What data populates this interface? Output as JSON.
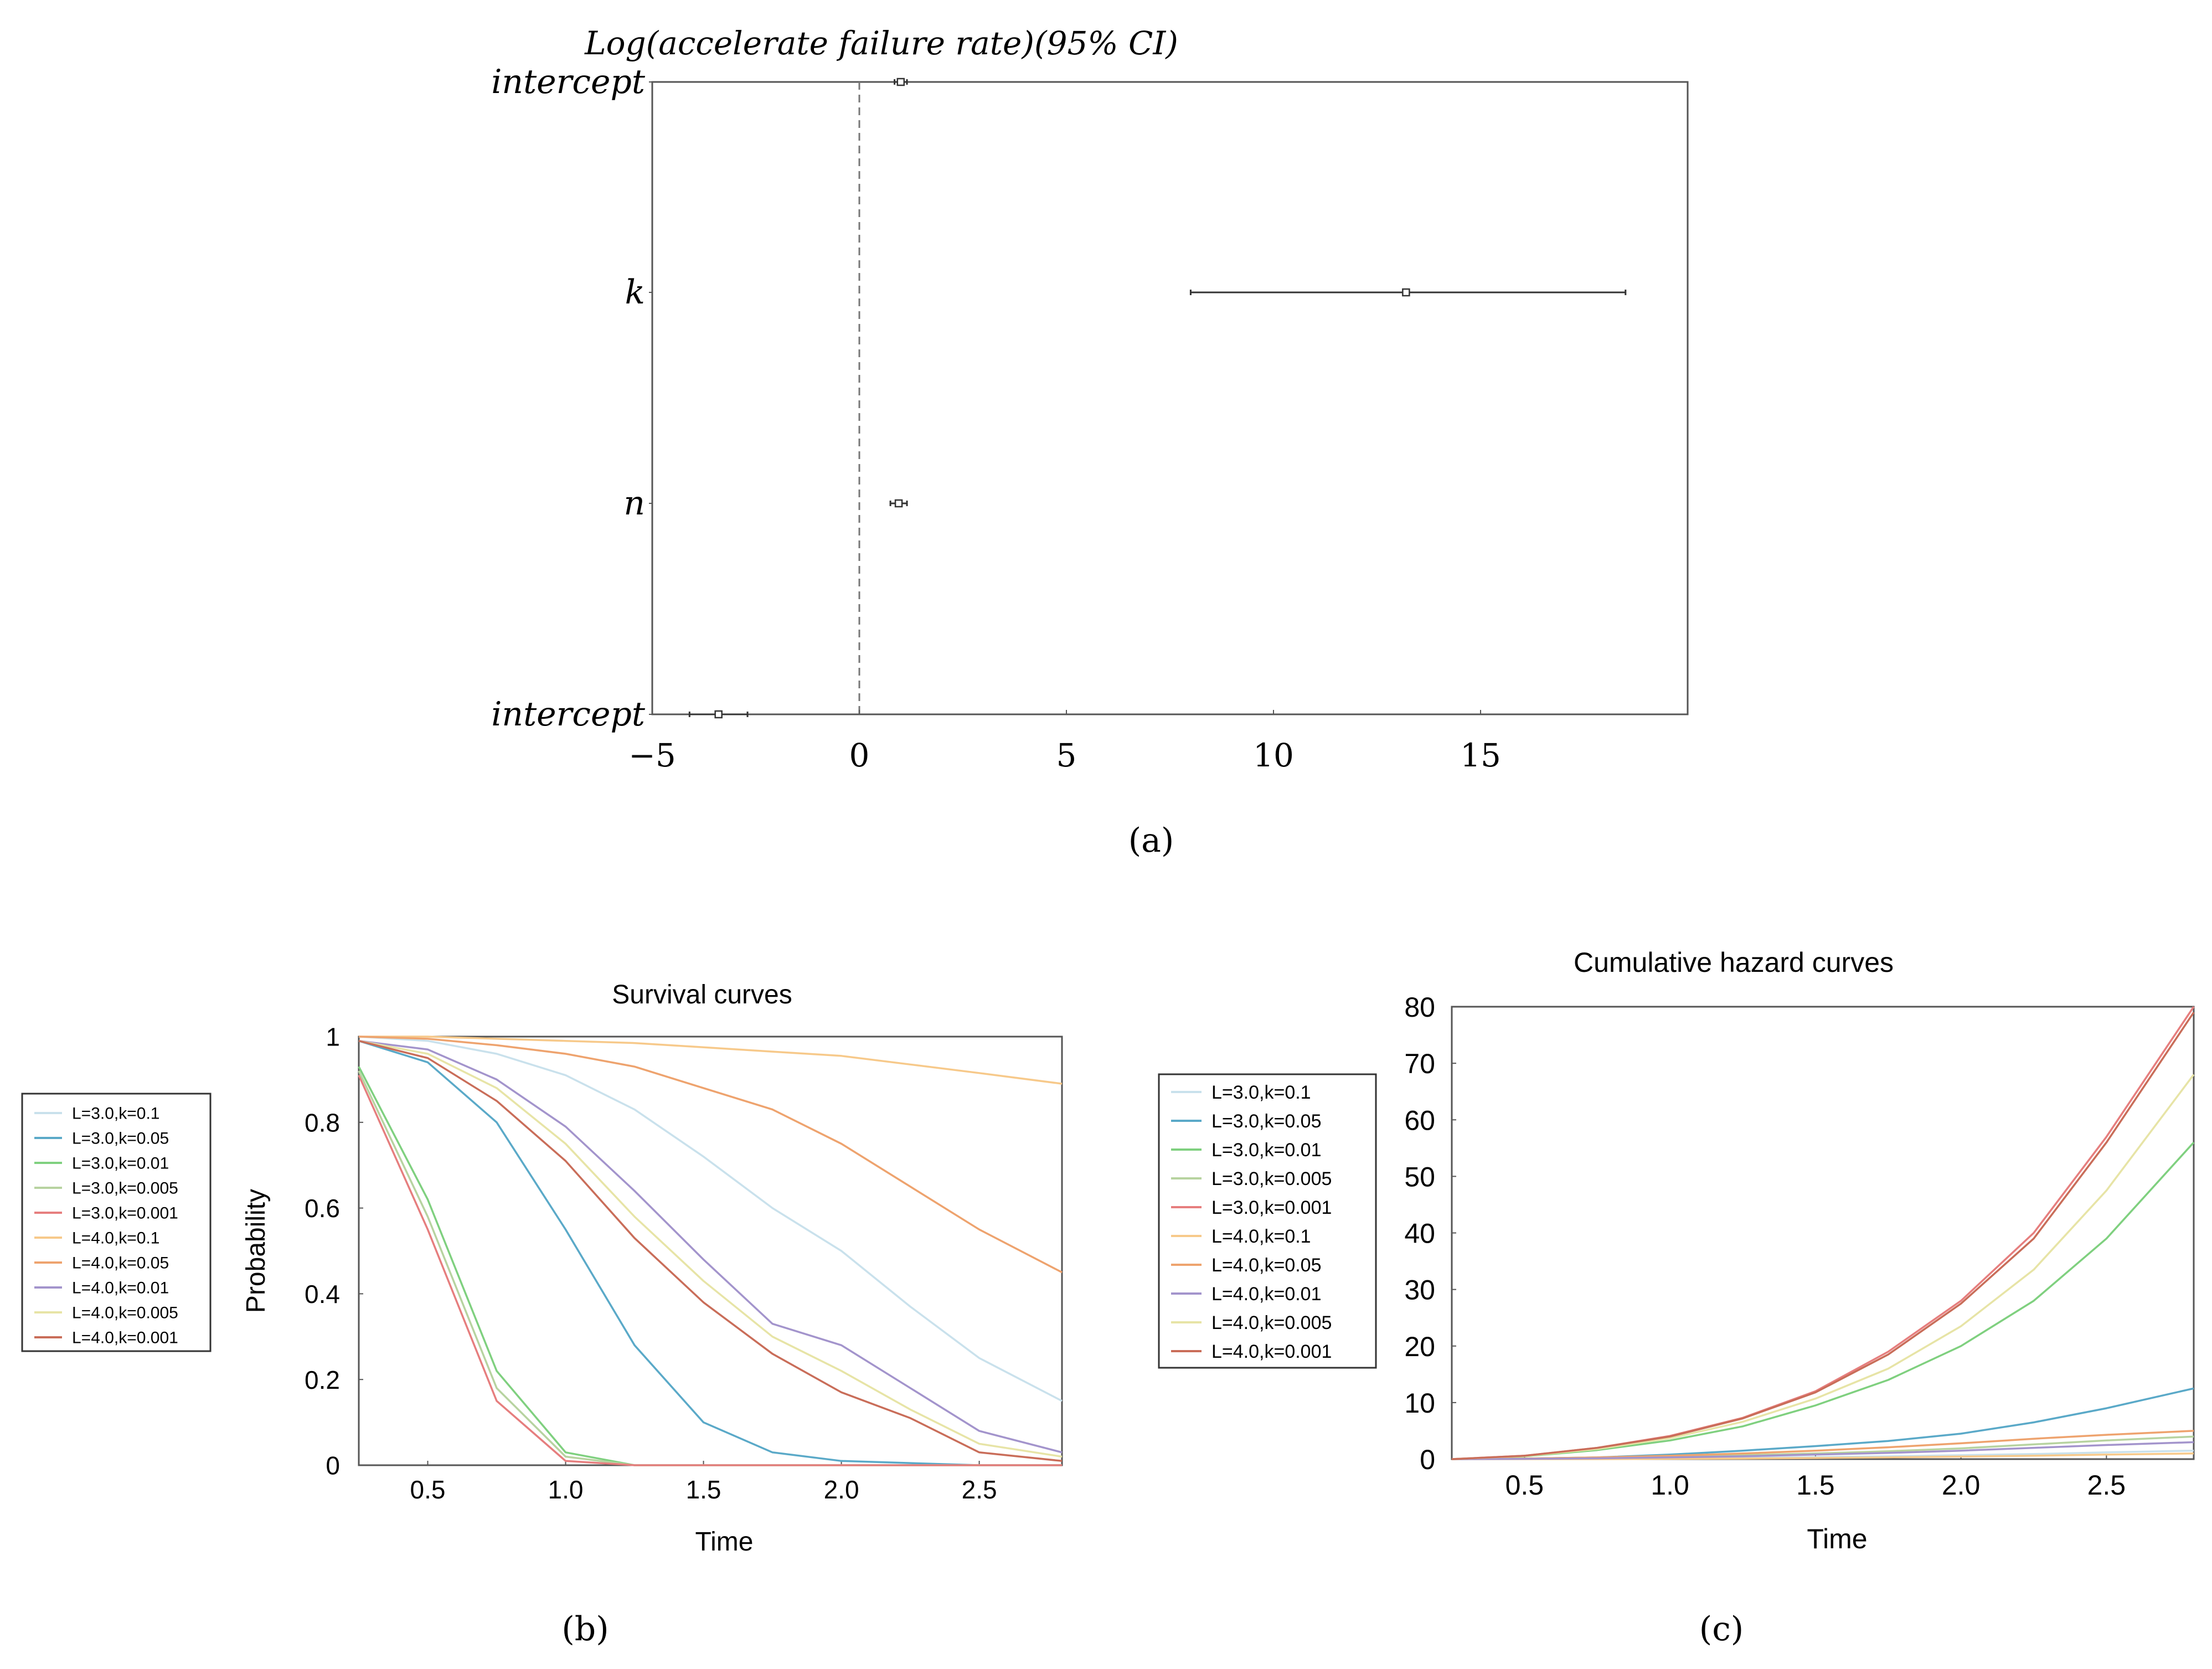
{
  "panel_labels": {
    "a": "(a)",
    "b": "(b)",
    "c": "(c)"
  },
  "colors": {
    "L=3.0,k=0.1": "#c9e1ec",
    "L=3.0,k=0.05": "#5aa9c8",
    "L=3.0,k=0.01": "#7fd07f",
    "L=3.0,k=0.005": "#b7d3a0",
    "L=3.0,k=0.001": "#e67e7e",
    "L=4.0,k=0.1": "#f7c98a",
    "L=4.0,k=0.05": "#eea36e",
    "L=4.0,k=0.01": "#a394cc",
    "L=4.0,k=0.005": "#e7e4a6",
    "L=4.0,k=0.001": "#c96d59"
  },
  "chart_data": [
    {
      "id": "a",
      "type": "scatter",
      "subtype": "forest",
      "title": "Log(accelerate failure rate)(95% CI)",
      "xlim": [
        -5,
        20
      ],
      "xticks": [
        "−5",
        "0",
        "5",
        "10",
        "15"
      ],
      "xtick_values": [
        -5,
        0,
        5,
        10,
        15
      ],
      "reference_line": 0,
      "rows": [
        {
          "label": "intercept",
          "estimate": 1.0,
          "ci": [
            0.85,
            1.15
          ]
        },
        {
          "label": "k",
          "estimate": 13.2,
          "ci": [
            8.0,
            18.5
          ]
        },
        {
          "label": "n",
          "estimate": 0.95,
          "ci": [
            0.75,
            1.15
          ]
        },
        {
          "label": "intercept",
          "estimate": -3.4,
          "ci": [
            -4.1,
            -2.7
          ]
        }
      ]
    },
    {
      "id": "b",
      "type": "line",
      "title": "Survival curves",
      "xlabel": "Time",
      "ylabel": "Probability",
      "xlim": [
        0.25,
        2.8
      ],
      "ylim": [
        0,
        1
      ],
      "xticks": [
        "0.5",
        "1.0",
        "1.5",
        "2.0",
        "2.5"
      ],
      "xtick_values": [
        0.5,
        1.0,
        1.5,
        2.0,
        2.5
      ],
      "yticks": [
        "0",
        "0.2",
        "0.4",
        "0.6",
        "0.8",
        "1"
      ],
      "ytick_values": [
        0,
        0.2,
        0.4,
        0.6,
        0.8,
        1
      ],
      "x": [
        0.25,
        0.5,
        0.75,
        1.0,
        1.25,
        1.5,
        1.75,
        2.0,
        2.25,
        2.5,
        2.8
      ],
      "series": [
        {
          "name": "L=3.0,k=0.1",
          "values": [
            1.0,
            0.99,
            0.96,
            0.91,
            0.83,
            0.72,
            0.6,
            0.5,
            0.37,
            0.25,
            0.15
          ]
        },
        {
          "name": "L=3.0,k=0.05",
          "values": [
            0.99,
            0.94,
            0.8,
            0.55,
            0.28,
            0.1,
            0.03,
            0.01,
            0.005,
            0.0,
            0.0
          ]
        },
        {
          "name": "L=3.0,k=0.01",
          "values": [
            0.93,
            0.62,
            0.22,
            0.03,
            0.0,
            0.0,
            0.0,
            0.0,
            0.0,
            0.0,
            0.0
          ]
        },
        {
          "name": "L=3.0,k=0.005",
          "values": [
            0.92,
            0.58,
            0.18,
            0.02,
            0.0,
            0.0,
            0.0,
            0.0,
            0.0,
            0.0,
            0.0
          ]
        },
        {
          "name": "L=3.0,k=0.001",
          "values": [
            0.91,
            0.55,
            0.15,
            0.01,
            0.0,
            0.0,
            0.0,
            0.0,
            0.0,
            0.0,
            0.0
          ]
        },
        {
          "name": "L=4.0,k=0.1",
          "values": [
            1.0,
            1.0,
            0.995,
            0.99,
            0.985,
            0.975,
            0.965,
            0.955,
            0.935,
            0.915,
            0.89
          ]
        },
        {
          "name": "L=4.0,k=0.05",
          "values": [
            1.0,
            0.995,
            0.98,
            0.96,
            0.93,
            0.88,
            0.83,
            0.75,
            0.65,
            0.55,
            0.45
          ]
        },
        {
          "name": "L=4.0,k=0.01",
          "values": [
            0.99,
            0.97,
            0.9,
            0.79,
            0.64,
            0.48,
            0.33,
            0.28,
            0.18,
            0.08,
            0.03
          ]
        },
        {
          "name": "L=4.0,k=0.005",
          "values": [
            0.99,
            0.96,
            0.88,
            0.75,
            0.58,
            0.43,
            0.3,
            0.22,
            0.13,
            0.05,
            0.02
          ]
        },
        {
          "name": "L=4.0,k=0.001",
          "values": [
            0.99,
            0.95,
            0.85,
            0.71,
            0.53,
            0.38,
            0.26,
            0.17,
            0.11,
            0.03,
            0.01
          ]
        }
      ],
      "legend": "left"
    },
    {
      "id": "c",
      "type": "line",
      "title": "Cumulative hazard curves",
      "xlabel": "Time",
      "ylabel": "",
      "xlim": [
        0.25,
        2.8
      ],
      "ylim": [
        0,
        80
      ],
      "xticks": [
        "0.5",
        "1.0",
        "1.5",
        "2.0",
        "2.5"
      ],
      "xtick_values": [
        0.5,
        1.0,
        1.5,
        2.0,
        2.5
      ],
      "yticks": [
        "0",
        "10",
        "20",
        "30",
        "40",
        "50",
        "60",
        "70",
        "80"
      ],
      "ytick_values": [
        0,
        10,
        20,
        30,
        40,
        50,
        60,
        70,
        80
      ],
      "x": [
        0.25,
        0.5,
        0.75,
        1.0,
        1.25,
        1.5,
        1.75,
        2.0,
        2.25,
        2.5,
        2.8
      ],
      "series": [
        {
          "name": "L=3.0,k=0.1",
          "values": [
            0.0,
            0.0,
            0.05,
            0.1,
            0.2,
            0.35,
            0.5,
            0.7,
            0.9,
            1.2,
            1.5
          ]
        },
        {
          "name": "L=3.0,k=0.05",
          "values": [
            0.0,
            0.1,
            0.3,
            0.8,
            1.5,
            2.3,
            3.2,
            4.5,
            6.5,
            9.0,
            12.5
          ]
        },
        {
          "name": "L=3.0,k=0.01",
          "values": [
            0.0,
            0.5,
            1.6,
            3.3,
            5.8,
            9.5,
            14.0,
            20.0,
            28.0,
            39.0,
            56.0
          ]
        },
        {
          "name": "L=3.0,k=0.005",
          "values": [
            0.0,
            0.1,
            0.2,
            0.4,
            0.7,
            1.0,
            1.4,
            1.9,
            2.6,
            3.3,
            4.0
          ]
        },
        {
          "name": "L=3.0,k=0.001",
          "values": [
            0.0,
            0.6,
            2.0,
            4.1,
            7.3,
            12.0,
            19.0,
            28.0,
            40.0,
            57.0,
            80.0
          ]
        },
        {
          "name": "L=4.0,k=0.1",
          "values": [
            0.0,
            0.0,
            0.0,
            0.05,
            0.1,
            0.2,
            0.3,
            0.45,
            0.6,
            0.8,
            1.0
          ]
        },
        {
          "name": "L=4.0,k=0.05",
          "values": [
            0.0,
            0.1,
            0.3,
            0.6,
            1.0,
            1.5,
            2.1,
            2.8,
            3.6,
            4.3,
            5.0
          ]
        },
        {
          "name": "L=4.0,k=0.01",
          "values": [
            0.0,
            0.05,
            0.15,
            0.3,
            0.5,
            0.8,
            1.1,
            1.5,
            2.0,
            2.5,
            3.0
          ]
        },
        {
          "name": "L=4.0,k=0.005",
          "values": [
            0.0,
            0.55,
            1.8,
            3.7,
            6.6,
            10.7,
            16.0,
            23.5,
            33.5,
            47.5,
            68.0
          ]
        },
        {
          "name": "L=4.0,k=0.001",
          "values": [
            0.0,
            0.6,
            2.0,
            4.0,
            7.2,
            11.8,
            18.5,
            27.5,
            39.0,
            56.0,
            79.0
          ]
        }
      ],
      "legend": "left"
    }
  ]
}
